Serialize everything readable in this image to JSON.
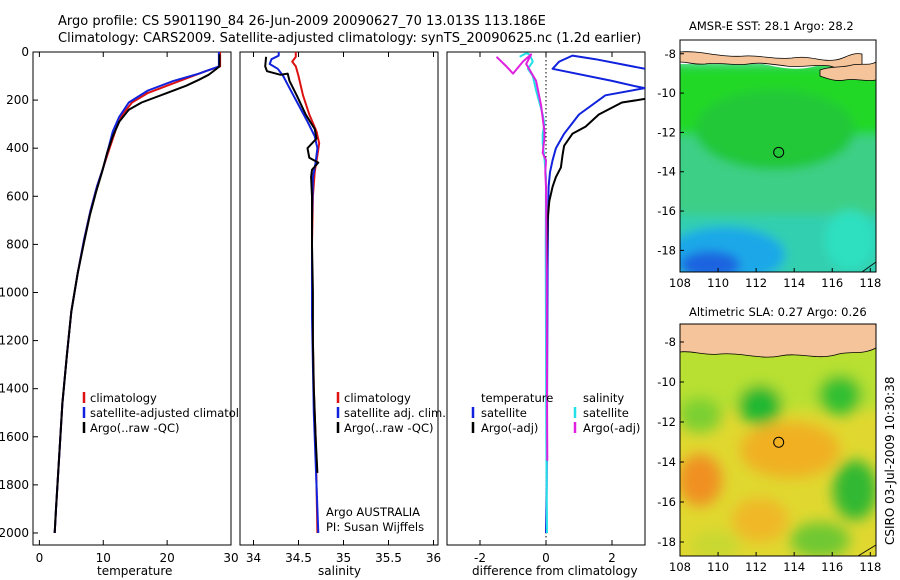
{
  "header": {
    "line1": "Argo profile: CS 5901190_84 26-Jun-2009 20090627_70 13.013S 113.186E",
    "line2": "Climatology: CARS2009. Satellite-adjusted climatology: synTS_20090625.nc (1.2d earlier)"
  },
  "side_label": "CSIRO 03-Jul-2009 10:30:38",
  "colors": {
    "climatology": "#dd1111",
    "satellite": "#1122dd",
    "argo": "#000000",
    "sat_diff_salinity": "#22e0e8",
    "argo_diff_salinity": "#e020e0",
    "land": "#f5c49a"
  },
  "chart_data": [
    {
      "id": "temperature",
      "type": "line",
      "xlabel": "temperature",
      "ylabel": "",
      "xlim": [
        -1,
        30
      ],
      "ylim": [
        2050,
        0
      ],
      "xticks": [
        0,
        10,
        20,
        30
      ],
      "yticks": [
        0,
        200,
        400,
        600,
        800,
        1000,
        1200,
        1400,
        1600,
        1800,
        2000
      ],
      "legend": [
        "climatology",
        "satellite-adjusted climatology",
        "Argo(..raw -QC)"
      ],
      "series": [
        {
          "key": "climatology",
          "points": [
            [
              28.3,
              0
            ],
            [
              28.3,
              60
            ],
            [
              26,
              80
            ],
            [
              23,
              110
            ],
            [
              20,
              140
            ],
            [
              17,
              170
            ],
            [
              14.5,
              210
            ],
            [
              13,
              260
            ],
            [
              12,
              320
            ],
            [
              11,
              400
            ],
            [
              10,
              480
            ],
            [
              9,
              560
            ],
            [
              8,
              660
            ],
            [
              7,
              780
            ],
            [
              6,
              920
            ],
            [
              5,
              1080
            ],
            [
              4.3,
              1260
            ],
            [
              3.6,
              1460
            ],
            [
              3.1,
              1680
            ],
            [
              2.6,
              1900
            ],
            [
              2.4,
              2000
            ]
          ]
        },
        {
          "key": "satellite",
          "points": [
            [
              28.1,
              0
            ],
            [
              28.1,
              60
            ],
            [
              25,
              90
            ],
            [
              21,
              120
            ],
            [
              17,
              160
            ],
            [
              14,
              210
            ],
            [
              12.5,
              270
            ],
            [
              11.5,
              330
            ],
            [
              10.8,
              400
            ],
            [
              10,
              480
            ],
            [
              9,
              560
            ],
            [
              8,
              660
            ],
            [
              7,
              780
            ],
            [
              6,
              920
            ],
            [
              5,
              1080
            ],
            [
              4.3,
              1260
            ],
            [
              3.6,
              1460
            ],
            [
              3.1,
              1680
            ],
            [
              2.6,
              1900
            ],
            [
              2.4,
              2000
            ]
          ]
        },
        {
          "key": "argo",
          "points": [
            [
              28.2,
              10
            ],
            [
              28.2,
              60
            ],
            [
              27.5,
              75
            ],
            [
              26.5,
              95
            ],
            [
              25,
              115
            ],
            [
              23,
              140
            ],
            [
              20,
              170
            ],
            [
              16,
              210
            ],
            [
              14,
              240
            ],
            [
              12.5,
              290
            ],
            [
              11.5,
              350
            ],
            [
              10.6,
              420
            ],
            [
              9.8,
              500
            ],
            [
              8.9,
              580
            ],
            [
              7.9,
              680
            ],
            [
              7,
              790
            ],
            [
              6,
              920
            ],
            [
              5,
              1080
            ],
            [
              4.3,
              1260
            ],
            [
              3.6,
              1460
            ],
            [
              3.1,
              1680
            ],
            [
              2.6,
              1900
            ],
            [
              2.4,
              2000
            ]
          ]
        }
      ]
    },
    {
      "id": "salinity",
      "type": "line",
      "xlabel": "salinity",
      "ylabel": "",
      "xlim": [
        33.85,
        36.05
      ],
      "ylim": [
        2050,
        0
      ],
      "xticks": [
        34,
        34.5,
        35,
        35.5,
        36
      ],
      "xticklabels": [
        "34",
        "34.5",
        "35",
        "35.5",
        "36"
      ],
      "legend": [
        "climatology",
        "satellite adj. clim.",
        "Argo(..raw -QC)"
      ],
      "annotation": [
        "Argo AUSTRALIA",
        "PI: Susan Wijffels"
      ],
      "series": [
        {
          "key": "climatology",
          "points": [
            [
              34.47,
              0
            ],
            [
              34.47,
              20
            ],
            [
              34.43,
              40
            ],
            [
              34.47,
              60
            ],
            [
              34.5,
              100
            ],
            [
              34.55,
              180
            ],
            [
              34.62,
              260
            ],
            [
              34.7,
              330
            ],
            [
              34.73,
              380
            ],
            [
              34.71,
              430
            ],
            [
              34.68,
              500
            ],
            [
              34.66,
              600
            ],
            [
              34.65,
              800
            ],
            [
              34.65,
              1000
            ],
            [
              34.66,
              1200
            ],
            [
              34.67,
              1400
            ],
            [
              34.69,
              1600
            ],
            [
              34.7,
              1800
            ],
            [
              34.71,
              2000
            ]
          ]
        },
        {
          "key": "satellite",
          "points": [
            [
              34.28,
              0
            ],
            [
              34.28,
              15
            ],
            [
              34.2,
              30
            ],
            [
              34.18,
              50
            ],
            [
              34.27,
              70
            ],
            [
              34.33,
              100
            ],
            [
              34.4,
              150
            ],
            [
              34.5,
              220
            ],
            [
              34.6,
              290
            ],
            [
              34.68,
              350
            ],
            [
              34.71,
              400
            ],
            [
              34.69,
              460
            ],
            [
              34.66,
              520
            ],
            [
              34.65,
              700
            ],
            [
              34.65,
              900
            ],
            [
              34.65,
              1100
            ],
            [
              34.66,
              1300
            ],
            [
              34.67,
              1500
            ],
            [
              34.69,
              1700
            ],
            [
              34.71,
              1900
            ],
            [
              34.72,
              2000
            ]
          ]
        },
        {
          "key": "argo",
          "points": [
            [
              34.14,
              20
            ],
            [
              34.13,
              60
            ],
            [
              34.15,
              80
            ],
            [
              34.3,
              95
            ],
            [
              34.38,
              90
            ],
            [
              34.4,
              120
            ],
            [
              34.48,
              180
            ],
            [
              34.58,
              260
            ],
            [
              34.68,
              320
            ],
            [
              34.7,
              360
            ],
            [
              34.6,
              400
            ],
            [
              34.62,
              440
            ],
            [
              34.72,
              460
            ],
            [
              34.65,
              490
            ],
            [
              34.64,
              520
            ],
            [
              34.65,
              600
            ],
            [
              34.65,
              800
            ],
            [
              34.66,
              1000
            ],
            [
              34.66,
              1200
            ],
            [
              34.67,
              1400
            ],
            [
              34.69,
              1600
            ],
            [
              34.71,
              1750
            ]
          ]
        }
      ]
    },
    {
      "id": "difference",
      "type": "line",
      "xlabel": "difference from climatology",
      "ylabel": "",
      "xlim": [
        -3,
        3
      ],
      "ylim": [
        2050,
        0
      ],
      "xticks": [
        -2,
        0,
        2
      ],
      "legend_left_title": "temperature",
      "legend_right_title": "salinity",
      "legend": [
        "satellite",
        "Argo(-adj)",
        "satellite",
        "Argo(-adj)"
      ],
      "series": [
        {
          "key": "satellite",
          "points": [
            [
              3,
              70
            ],
            [
              1.5,
              30
            ],
            [
              0.8,
              15
            ],
            [
              0.4,
              40
            ],
            [
              0.2,
              70
            ],
            [
              2,
              120
            ],
            [
              2.8,
              145
            ],
            [
              3,
              150
            ],
            [
              1.8,
              180
            ],
            [
              1.0,
              260
            ],
            [
              0.55,
              340
            ],
            [
              0.3,
              400
            ],
            [
              0.2,
              450
            ],
            [
              0.12,
              500
            ],
            [
              0.08,
              560
            ],
            [
              0.06,
              700
            ],
            [
              0.05,
              900
            ],
            [
              0.04,
              1200
            ],
            [
              0.03,
              1500
            ],
            [
              0.02,
              1800
            ],
            [
              0,
              2000
            ]
          ]
        },
        {
          "key": "argo",
          "points": [
            [
              3,
              195
            ],
            [
              2.3,
              210
            ],
            [
              1.6,
              260
            ],
            [
              1.2,
              310
            ],
            [
              0.8,
              340
            ],
            [
              0.55,
              390
            ],
            [
              0.5,
              430
            ],
            [
              0.45,
              480
            ],
            [
              0.3,
              520
            ],
            [
              0.2,
              560
            ],
            [
              0.1,
              620
            ],
            [
              0.05,
              700
            ],
            [
              0.02,
              900
            ]
          ]
        },
        {
          "key": "sat_diff_salinity",
          "points": [
            [
              -0.8,
              20
            ],
            [
              -0.6,
              5
            ],
            [
              -0.5,
              10
            ],
            [
              -0.4,
              40
            ],
            [
              -0.55,
              70
            ],
            [
              -0.4,
              100
            ],
            [
              -0.3,
              160
            ],
            [
              -0.2,
              210
            ],
            [
              -0.1,
              260
            ],
            [
              -0.05,
              300
            ],
            [
              -0.1,
              340
            ],
            [
              -0.1,
              380
            ],
            [
              -0.05,
              440
            ],
            [
              0,
              520
            ],
            [
              -0.01,
              800
            ],
            [
              0,
              1200
            ],
            [
              0.01,
              1600
            ],
            [
              0.03,
              2000
            ]
          ]
        },
        {
          "key": "argo_diff_salinity",
          "points": [
            [
              -1.5,
              20
            ],
            [
              -1.2,
              60
            ],
            [
              -1.0,
              90
            ],
            [
              -0.7,
              40
            ],
            [
              -0.45,
              10
            ],
            [
              -0.6,
              50
            ],
            [
              -0.3,
              120
            ],
            [
              -0.15,
              220
            ],
            [
              -0.05,
              330
            ],
            [
              -0.05,
              360
            ],
            [
              -0.1,
              420
            ],
            [
              0,
              450
            ],
            [
              -0.02,
              500
            ],
            [
              0,
              560
            ],
            [
              0.02,
              900
            ],
            [
              0.03,
              1400
            ],
            [
              0.04,
              1700
            ]
          ]
        }
      ]
    },
    {
      "id": "sst_map",
      "type": "heatmap",
      "title": "AMSR-E SST: 28.1 Argo: 28.2",
      "xlim": [
        108,
        118.3
      ],
      "ylim": [
        -19.1,
        -7.3
      ],
      "xticks": [
        108,
        110,
        112,
        114,
        116,
        118
      ],
      "yticks": [
        -8,
        -10,
        -12,
        -14,
        -16,
        -18
      ],
      "marker": [
        113.186,
        -13.013
      ]
    },
    {
      "id": "sla_map",
      "type": "heatmap",
      "title": "Altimetric SLA: 0.27 Argo: 0.26",
      "xlim": [
        108,
        118.3
      ],
      "ylim": [
        -18.7,
        -7.1
      ],
      "xticks": [
        108,
        110,
        112,
        114,
        116,
        118
      ],
      "yticks": [
        -8,
        -10,
        -12,
        -14,
        -16,
        -18
      ],
      "marker": [
        113.186,
        -13.013
      ]
    }
  ]
}
